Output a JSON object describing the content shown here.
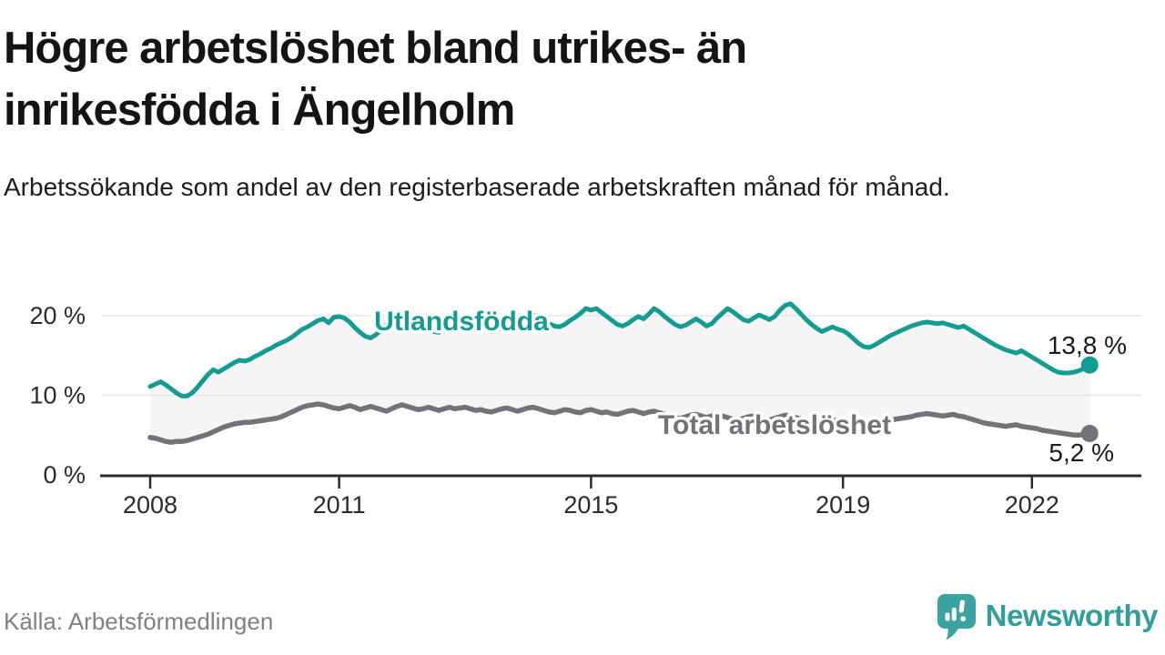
{
  "header": {
    "title": "Högre arbetslöshet bland utrikes- än inrikesfödda i Ängelholm",
    "subtitle": "Arbetssökande som andel av den registerbaserade arbetskraften månad för månad."
  },
  "footer": {
    "source": "Källa: Arbetsförmedlingen",
    "brand": "Newsworthy"
  },
  "colors": {
    "series_foreign": "#149c93",
    "series_total": "#72727a",
    "between_fill": "#f5f5f5",
    "grid": "#e5e5e5",
    "axis": "#2b2b2b",
    "tick_text": "#2b2b2b",
    "value_text": "#1a1a1a",
    "label_halo": "#ffffff",
    "brand_teal": "#319e9b",
    "source_text": "#7f7f87"
  },
  "chart_data": {
    "type": "line",
    "title": "Arbetssökande som andel av den registerbaserade arbetskraften månad för månad",
    "x_unit": "month",
    "x_start": "2008-01",
    "x_end": "2022-12",
    "ylim": [
      0,
      22
    ],
    "grid": "horizontal",
    "legend_position": "inline-labels",
    "y_ticks": [
      {
        "value": 0,
        "label": "0 %"
      },
      {
        "value": 10,
        "label": "10 %"
      },
      {
        "value": 20,
        "label": "20 %"
      }
    ],
    "x_ticks": [
      {
        "year": 2008,
        "label": "2008"
      },
      {
        "year": 2011,
        "label": "2011"
      },
      {
        "year": 2015,
        "label": "2015"
      },
      {
        "year": 2019,
        "label": "2019"
      },
      {
        "year": 2022,
        "label": "2022"
      }
    ],
    "series": [
      {
        "name": "Utlandsfödda",
        "end_value_label": "13,8 %",
        "inline_label": {
          "x": 507,
          "y": 363
        },
        "end_label_anchor": {
          "x": 1238,
          "y": 389
        },
        "values": [
          11.1,
          11.4,
          11.7,
          11.3,
          10.8,
          10.3,
          9.9,
          9.9,
          10.3,
          11.0,
          11.8,
          12.6,
          13.2,
          12.9,
          13.3,
          13.7,
          14.1,
          14.4,
          14.3,
          14.5,
          14.9,
          15.2,
          15.6,
          15.9,
          16.3,
          16.6,
          16.9,
          17.3,
          17.8,
          18.3,
          18.6,
          19.0,
          19.4,
          19.6,
          19.1,
          19.8,
          19.9,
          19.7,
          19.2,
          18.5,
          17.9,
          17.4,
          17.2,
          17.6,
          18.2,
          18.9,
          19.3,
          19.9,
          20.5,
          20.2,
          19.7,
          19.3,
          18.8,
          18.4,
          18.0,
          17.9,
          18.3,
          18.7,
          18.5,
          18.8,
          19.0,
          18.7,
          18.4,
          18.6,
          18.3,
          18.0,
          18.2,
          18.5,
          18.9,
          19.2,
          19.0,
          19.4,
          19.8,
          20.1,
          19.8,
          19.4,
          19.0,
          18.7,
          18.6,
          18.9,
          19.4,
          19.8,
          20.3,
          20.9,
          20.7,
          20.9,
          20.4,
          19.9,
          19.4,
          18.9,
          18.7,
          19.0,
          19.5,
          19.9,
          19.6,
          20.2,
          20.9,
          20.5,
          19.9,
          19.4,
          18.9,
          18.6,
          18.8,
          19.2,
          19.6,
          19.2,
          18.7,
          19.0,
          19.7,
          20.3,
          20.9,
          20.5,
          20.0,
          19.5,
          19.3,
          19.7,
          20.1,
          19.8,
          19.5,
          19.9,
          20.7,
          21.3,
          21.5,
          20.9,
          20.2,
          19.5,
          18.9,
          18.4,
          18.0,
          18.3,
          18.6,
          18.3,
          18.1,
          17.7,
          17.1,
          16.5,
          16.1,
          16.0,
          16.3,
          16.7,
          17.1,
          17.5,
          17.8,
          18.1,
          18.4,
          18.7,
          18.9,
          19.1,
          19.2,
          19.1,
          19.0,
          19.1,
          18.9,
          18.7,
          18.5,
          18.7,
          18.3,
          17.9,
          17.5,
          17.1,
          16.7,
          16.3,
          16.0,
          15.7,
          15.5,
          15.3,
          15.6,
          15.2,
          14.8,
          14.4,
          14.0,
          13.6,
          13.2,
          12.9,
          12.8,
          12.8,
          12.9,
          13.1,
          13.4,
          13.8
        ]
      },
      {
        "name": "Total arbetslöshet",
        "end_value_label": "5,2 %",
        "inline_label": {
          "x": 851,
          "y": 477
        },
        "end_label_anchor": {
          "x": 1224,
          "y": 507
        },
        "values": [
          4.7,
          4.6,
          4.4,
          4.2,
          4.1,
          4.2,
          4.2,
          4.3,
          4.5,
          4.7,
          4.9,
          5.1,
          5.4,
          5.7,
          6.0,
          6.2,
          6.4,
          6.5,
          6.6,
          6.6,
          6.7,
          6.8,
          6.9,
          7.0,
          7.1,
          7.3,
          7.6,
          7.9,
          8.2,
          8.5,
          8.7,
          8.8,
          8.9,
          8.8,
          8.6,
          8.4,
          8.3,
          8.5,
          8.7,
          8.5,
          8.2,
          8.4,
          8.6,
          8.4,
          8.2,
          8.0,
          8.3,
          8.6,
          8.8,
          8.6,
          8.4,
          8.2,
          8.3,
          8.5,
          8.3,
          8.1,
          8.3,
          8.5,
          8.3,
          8.4,
          8.5,
          8.3,
          8.1,
          8.2,
          8.0,
          7.9,
          8.1,
          8.3,
          8.4,
          8.2,
          8.0,
          8.2,
          8.4,
          8.5,
          8.3,
          8.1,
          7.9,
          7.8,
          8.0,
          8.2,
          8.1,
          7.9,
          7.8,
          8.1,
          8.2,
          8.0,
          7.8,
          7.9,
          7.7,
          7.6,
          7.8,
          8.0,
          8.1,
          7.9,
          7.7,
          7.9,
          8.0,
          7.8,
          7.6,
          7.4,
          7.2,
          7.1,
          7.3,
          7.5,
          7.6,
          7.4,
          7.2,
          7.4,
          7.6,
          7.4,
          7.2,
          7.0,
          6.9,
          7.1,
          7.3,
          7.4,
          7.2,
          7.0,
          6.9,
          7.1,
          7.3,
          7.5,
          7.4,
          7.2,
          7.0,
          6.8,
          6.6,
          6.7,
          6.9,
          7.0,
          6.9,
          6.8,
          6.7,
          6.5,
          6.4,
          6.3,
          6.3,
          6.4,
          6.6,
          6.7,
          6.6,
          6.8,
          7.0,
          7.1,
          7.2,
          7.3,
          7.5,
          7.6,
          7.7,
          7.6,
          7.5,
          7.4,
          7.5,
          7.6,
          7.4,
          7.3,
          7.1,
          6.9,
          6.7,
          6.5,
          6.4,
          6.3,
          6.2,
          6.1,
          6.2,
          6.3,
          6.1,
          6.0,
          5.9,
          5.8,
          5.6,
          5.5,
          5.4,
          5.3,
          5.2,
          5.1,
          5.0,
          5.0,
          5.1,
          5.2
        ]
      }
    ]
  }
}
